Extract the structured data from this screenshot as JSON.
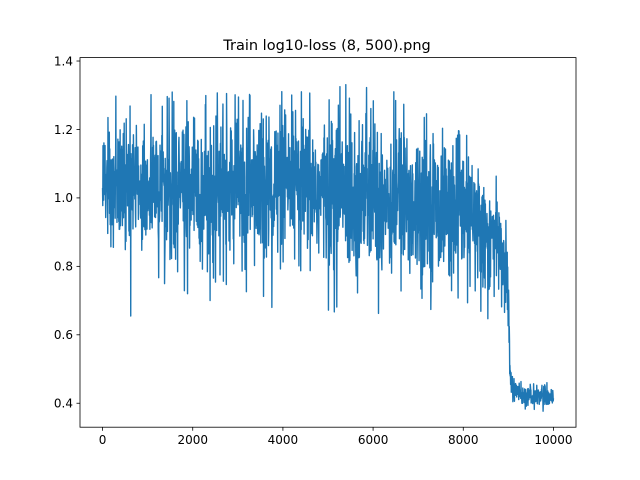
{
  "chart_data": {
    "type": "line",
    "title": "Train log10-loss (8, 500).png",
    "xlabel": "",
    "ylabel": "",
    "xlim": [
      -500,
      10500
    ],
    "ylim": [
      0.33,
      1.41
    ],
    "x_ticks": [
      0,
      2000,
      4000,
      6000,
      8000,
      10000
    ],
    "y_ticks": [
      0.4,
      0.6,
      0.8,
      1.0,
      1.2,
      1.4
    ],
    "x_tick_labels": [
      "0",
      "2000",
      "4000",
      "6000",
      "8000",
      "10000"
    ],
    "y_tick_labels": [
      "0.4",
      "0.6",
      "0.8",
      "1.0",
      "1.2",
      "1.4"
    ],
    "grid": false,
    "legend": "none",
    "series": [
      {
        "color": "#1f77b4",
        "x_start": 0,
        "x_end": 10000,
        "envelope": [
          {
            "x": 0,
            "mean": 1.05,
            "low": 0.69,
            "high": 1.21
          },
          {
            "x": 200,
            "mean": 1.04,
            "low": 0.73,
            "high": 1.31
          },
          {
            "x": 500,
            "mean": 1.04,
            "low": 0.74,
            "high": 1.27
          },
          {
            "x": 700,
            "mean": 1.03,
            "low": 0.6,
            "high": 1.29
          },
          {
            "x": 1000,
            "mean": 1.03,
            "low": 0.71,
            "high": 1.3
          },
          {
            "x": 1500,
            "mean": 1.03,
            "low": 0.72,
            "high": 1.31
          },
          {
            "x": 2000,
            "mean": 1.03,
            "low": 0.72,
            "high": 1.3
          },
          {
            "x": 2100,
            "mean": 1.03,
            "low": 0.61,
            "high": 1.29
          },
          {
            "x": 2500,
            "mean": 1.03,
            "low": 0.72,
            "high": 1.31
          },
          {
            "x": 3000,
            "mean": 1.03,
            "low": 0.7,
            "high": 1.3
          },
          {
            "x": 3500,
            "mean": 1.03,
            "low": 0.72,
            "high": 1.32
          },
          {
            "x": 4000,
            "mean": 1.03,
            "low": 0.59,
            "high": 1.31
          },
          {
            "x": 4500,
            "mean": 1.02,
            "low": 0.71,
            "high": 1.31
          },
          {
            "x": 5000,
            "mean": 1.02,
            "low": 0.61,
            "high": 1.29
          },
          {
            "x": 5300,
            "mean": 1.02,
            "low": 0.7,
            "high": 1.37
          },
          {
            "x": 6000,
            "mean": 1.01,
            "low": 0.66,
            "high": 1.31
          },
          {
            "x": 6500,
            "mean": 1.0,
            "low": 0.67,
            "high": 1.31
          },
          {
            "x": 7000,
            "mean": 0.99,
            "low": 0.66,
            "high": 1.27
          },
          {
            "x": 7500,
            "mean": 0.97,
            "low": 0.65,
            "high": 1.22
          },
          {
            "x": 8000,
            "mean": 0.95,
            "low": 0.66,
            "high": 1.19
          },
          {
            "x": 8500,
            "mean": 0.9,
            "low": 0.65,
            "high": 1.14
          },
          {
            "x": 8800,
            "mean": 0.86,
            "low": 0.63,
            "high": 1.04
          },
          {
            "x": 8980,
            "mean": 0.78,
            "low": 0.55,
            "high": 1.04
          },
          {
            "x": 9050,
            "mean": 0.45,
            "low": 0.4,
            "high": 0.5
          },
          {
            "x": 9300,
            "mean": 0.42,
            "low": 0.38,
            "high": 0.46
          },
          {
            "x": 10000,
            "mean": 0.42,
            "low": 0.37,
            "high": 0.46
          }
        ]
      }
    ]
  }
}
